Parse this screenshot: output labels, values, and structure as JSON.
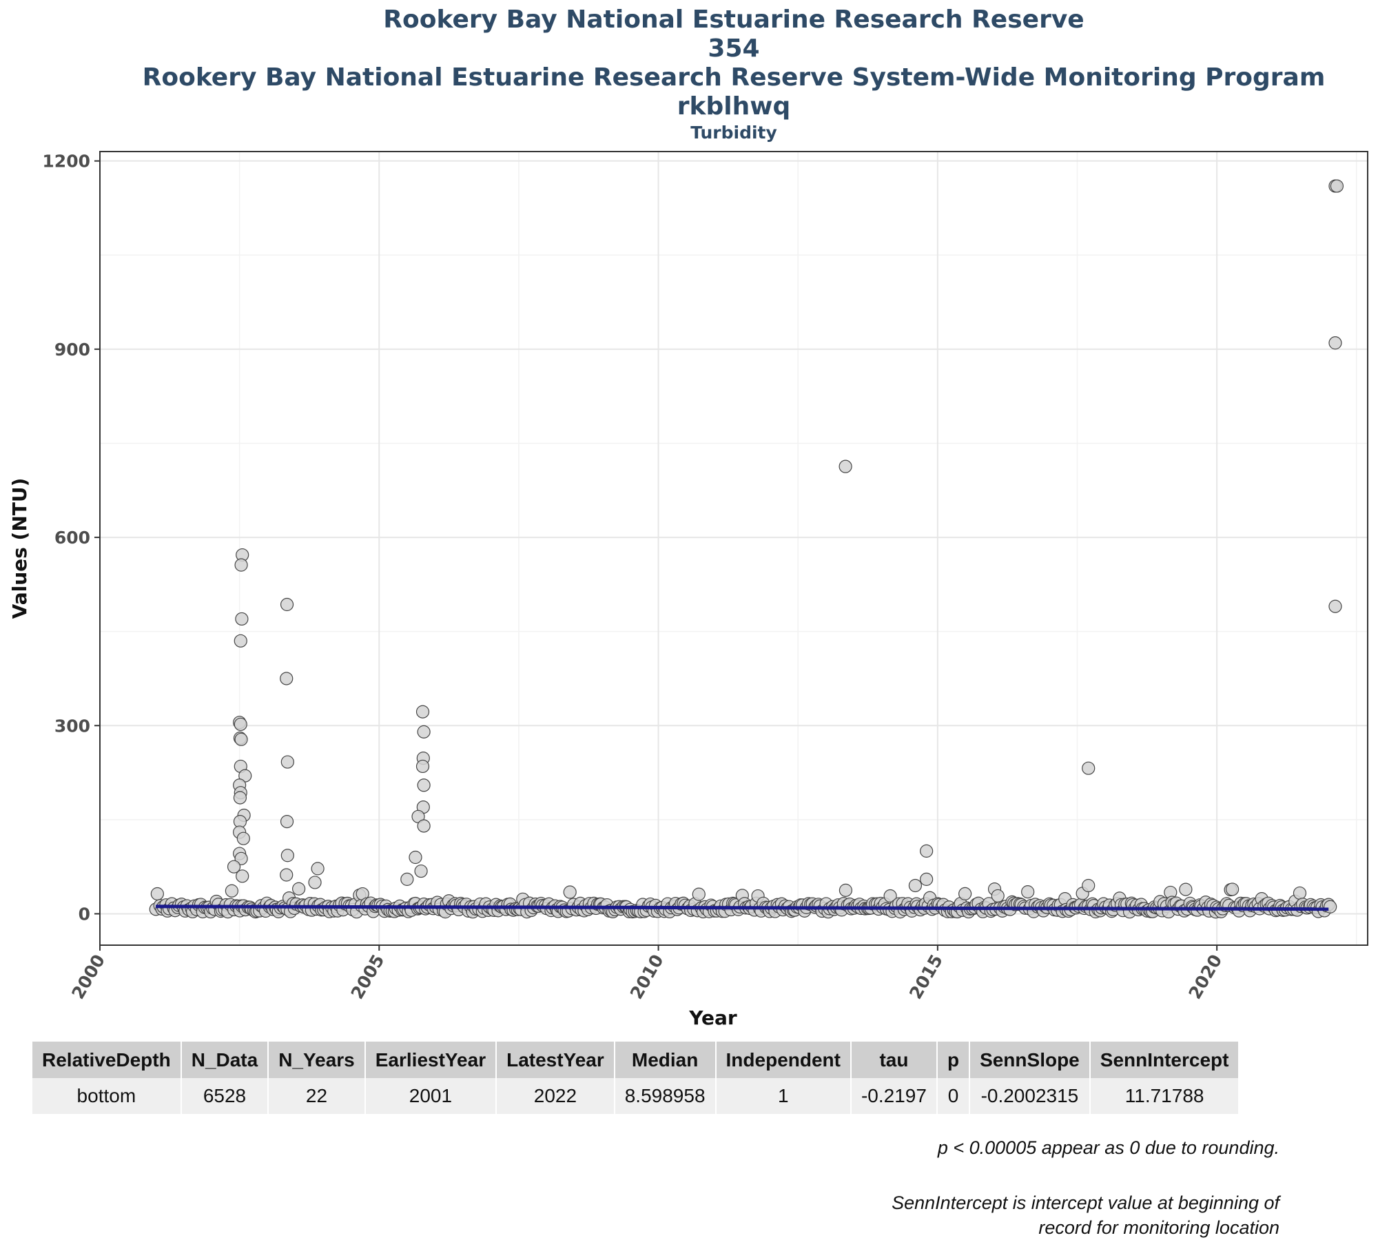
{
  "header": {
    "title_line1": "Rookery Bay National Estuarine Research Reserve",
    "title_line2": "354",
    "title_line3": "Rookery Bay National Estuarine Research Reserve System-Wide Monitoring Program",
    "title_line4": "rkblhwq",
    "subtitle": "Turbidity"
  },
  "chart_data": {
    "type": "scatter",
    "title": "Turbidity",
    "xlabel": "Year",
    "ylabel": "Values (NTU)",
    "xlim": [
      2000,
      2022.7
    ],
    "ylim": [
      -50,
      1215
    ],
    "x_ticks": [
      2000,
      2005,
      2010,
      2015,
      2020
    ],
    "y_ticks": [
      0,
      300,
      600,
      900,
      1200
    ],
    "grid": true,
    "trend_line": {
      "x": [
        2001.0,
        2022.0
      ],
      "y": [
        11.7,
        7.5
      ],
      "color": "#1a1a8c"
    },
    "point_fill": "#d3d3d3",
    "point_stroke": "#444444",
    "outliers": [
      {
        "x": 2002.55,
        "y": 572
      },
      {
        "x": 2002.53,
        "y": 556
      },
      {
        "x": 2002.54,
        "y": 470
      },
      {
        "x": 2002.52,
        "y": 435
      },
      {
        "x": 2002.5,
        "y": 305
      },
      {
        "x": 2002.52,
        "y": 302
      },
      {
        "x": 2002.51,
        "y": 280
      },
      {
        "x": 2002.53,
        "y": 278
      },
      {
        "x": 2002.52,
        "y": 235
      },
      {
        "x": 2002.6,
        "y": 220
      },
      {
        "x": 2002.5,
        "y": 205
      },
      {
        "x": 2002.52,
        "y": 193
      },
      {
        "x": 2002.51,
        "y": 185
      },
      {
        "x": 2002.58,
        "y": 157
      },
      {
        "x": 2002.51,
        "y": 147
      },
      {
        "x": 2002.5,
        "y": 130
      },
      {
        "x": 2002.57,
        "y": 120
      },
      {
        "x": 2002.5,
        "y": 96
      },
      {
        "x": 2002.53,
        "y": 88
      },
      {
        "x": 2002.4,
        "y": 75
      },
      {
        "x": 2002.55,
        "y": 60
      },
      {
        "x": 2003.35,
        "y": 493
      },
      {
        "x": 2003.34,
        "y": 375
      },
      {
        "x": 2003.36,
        "y": 242
      },
      {
        "x": 2003.35,
        "y": 147
      },
      {
        "x": 2003.36,
        "y": 93
      },
      {
        "x": 2003.34,
        "y": 62
      },
      {
        "x": 2005.78,
        "y": 322
      },
      {
        "x": 2005.8,
        "y": 290
      },
      {
        "x": 2005.79,
        "y": 248
      },
      {
        "x": 2005.78,
        "y": 235
      },
      {
        "x": 2005.8,
        "y": 205
      },
      {
        "x": 2005.79,
        "y": 170
      },
      {
        "x": 2005.7,
        "y": 155
      },
      {
        "x": 2005.8,
        "y": 140
      },
      {
        "x": 2005.65,
        "y": 90
      },
      {
        "x": 2005.75,
        "y": 68
      },
      {
        "x": 2005.5,
        "y": 55
      },
      {
        "x": 2013.35,
        "y": 713
      },
      {
        "x": 2014.8,
        "y": 100
      },
      {
        "x": 2014.8,
        "y": 55
      },
      {
        "x": 2014.6,
        "y": 45
      },
      {
        "x": 2017.7,
        "y": 232
      },
      {
        "x": 2017.7,
        "y": 45
      },
      {
        "x": 2003.9,
        "y": 72
      },
      {
        "x": 2003.85,
        "y": 50
      },
      {
        "x": 2022.12,
        "y": 1160
      },
      {
        "x": 2022.15,
        "y": 1160
      },
      {
        "x": 2022.12,
        "y": 910
      },
      {
        "x": 2022.12,
        "y": 490
      }
    ]
  },
  "table": {
    "headers": [
      "RelativeDepth",
      "N_Data",
      "N_Years",
      "EarliestYear",
      "LatestYear",
      "Median",
      "Independent",
      "tau",
      "p",
      "SennSlope",
      "SennIntercept"
    ],
    "row": [
      "bottom",
      "6528",
      "22",
      "2001",
      "2022",
      "8.598958",
      "1",
      "-0.2197",
      "0",
      "-0.2002315",
      "11.71788"
    ]
  },
  "notes": {
    "note1": "p < 0.00005 appear as 0 due to rounding.",
    "note2_line1": "SennIntercept is intercept value at beginning of",
    "note2_line2": "record for monitoring location"
  }
}
